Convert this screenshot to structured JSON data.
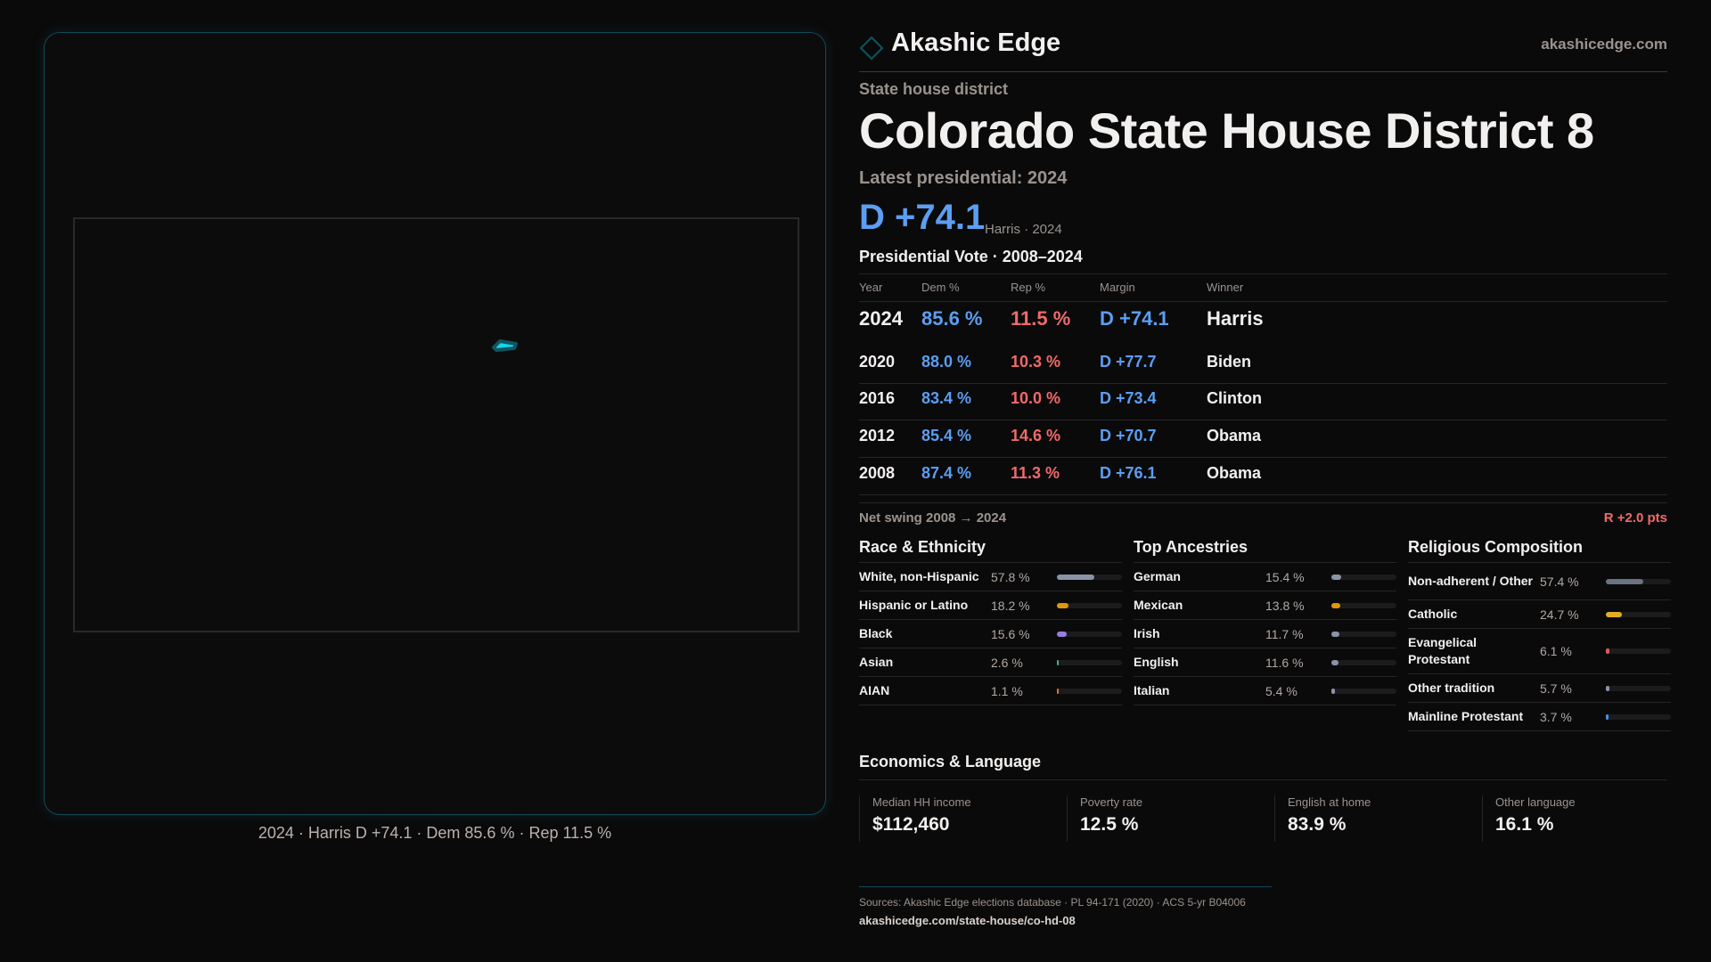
{
  "brand": {
    "name": "Akashic Edge",
    "site": "akashicedge.com",
    "accent": "#0f4b57"
  },
  "map": {
    "caption": "2024 · Harris D +74.1 · Dem 85.6 % · Rep 11.5 %",
    "district_color": "#19d3ee"
  },
  "header": {
    "kicker": "State house district",
    "title": "Colorado State House District 8",
    "latest": "Latest presidential: 2024",
    "margin": "D +74.1",
    "margin_note": "Harris · 2024"
  },
  "table": {
    "title": "Presidential Vote · 2008–2024",
    "columns": [
      "Year",
      "Dem %",
      "Rep %",
      "Margin",
      "Winner"
    ],
    "rows": [
      [
        "2024",
        "85.6 %",
        "11.5 %",
        "D +74.1",
        "Harris"
      ],
      [
        "2020",
        "88.0 %",
        "10.3 %",
        "D +77.7",
        "Biden"
      ],
      [
        "2016",
        "83.4 %",
        "10.0 %",
        "D +73.4",
        "Clinton"
      ],
      [
        "2012",
        "85.4 %",
        "14.6 %",
        "D +70.7",
        "Obama"
      ],
      [
        "2008",
        "87.4 %",
        "11.3 %",
        "D +76.1",
        "Obama"
      ]
    ]
  },
  "swing": {
    "label": "Net swing 2008 → 2024",
    "value": "R +2.0 pts"
  },
  "sections": [
    {
      "title": "Race & Ethnicity",
      "items": [
        {
          "label": "White, non-Hispanic",
          "value": "57.8 %",
          "pct": 57.8,
          "color": "#8a94a6"
        },
        {
          "label": "Hispanic or Latino",
          "value": "18.2 %",
          "pct": 18.2,
          "color": "#e0960e"
        },
        {
          "label": "Black",
          "value": "15.6 %",
          "pct": 15.6,
          "color": "#9a7de0"
        },
        {
          "label": "Asian",
          "value": "2.6 %",
          "pct": 2.6,
          "color": "#3fb68b"
        },
        {
          "label": "AIAN",
          "value": "1.1 %",
          "pct": 1.1,
          "color": "#d07a2a"
        }
      ]
    },
    {
      "title": "Top Ancestries",
      "items": [
        {
          "label": "German",
          "value": "15.4 %",
          "pct": 15.4,
          "color": "#8a94a6"
        },
        {
          "label": "Mexican",
          "value": "13.8 %",
          "pct": 13.8,
          "color": "#e0960e"
        },
        {
          "label": "Irish",
          "value": "11.7 %",
          "pct": 11.7,
          "color": "#8a94a6"
        },
        {
          "label": "English",
          "value": "11.6 %",
          "pct": 11.6,
          "color": "#8a94a6"
        },
        {
          "label": "Italian",
          "value": "5.4 %",
          "pct": 5.4,
          "color": "#8a94a6"
        }
      ]
    },
    {
      "title": "Religious Composition",
      "items": [
        {
          "label": "Non-adherent / Other",
          "value": "57.4 %",
          "pct": 57.4,
          "color": "#6b7280"
        },
        {
          "label": "Catholic",
          "value": "24.7 %",
          "pct": 24.7,
          "color": "#e0b020"
        },
        {
          "label": "Evangelical Protestant",
          "value": "6.1 %",
          "pct": 6.1,
          "color": "#e05a5a"
        },
        {
          "label": "Other tradition",
          "value": "5.7 %",
          "pct": 5.7,
          "color": "#8a94a6"
        },
        {
          "label": "Mainline Protestant",
          "value": "3.7 %",
          "pct": 3.7,
          "color": "#4a90e2"
        }
      ]
    }
  ],
  "economics": {
    "title": "Economics & Language",
    "stats": [
      {
        "label": "Median HH income",
        "value": "$112,460"
      },
      {
        "label": "Poverty rate",
        "value": "12.5 %"
      },
      {
        "label": "English at home",
        "value": "83.9 %"
      },
      {
        "label": "Other language",
        "value": "16.1 %"
      }
    ]
  },
  "footer": {
    "sources": "Sources: Akashic Edge elections database · PL 94-171 (2020) · ACS 5-yr B04006",
    "url": "akashicedge.com/state-house/co-hd-08"
  }
}
